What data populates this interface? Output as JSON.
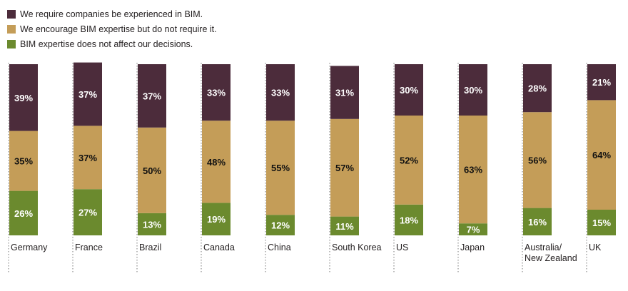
{
  "chart_data": {
    "type": "bar",
    "stacked": true,
    "normalized_percent": true,
    "categories": [
      "Germany",
      "France",
      "Brazil",
      "Canada",
      "China",
      "South Korea",
      "US",
      "Japan",
      [
        "Australia/",
        "New Zealand"
      ],
      "UK"
    ],
    "series": [
      {
        "name": "BIM expertise does not affect our decisions.",
        "color": "#6b8a2e",
        "values": [
          26,
          27,
          13,
          19,
          12,
          11,
          18,
          7,
          16,
          15
        ],
        "labels": [
          "26%",
          "27%",
          "13%",
          "19%",
          "12%",
          "11%",
          "18%",
          "7%",
          "16%",
          "15%"
        ]
      },
      {
        "name": "We encourage BIM expertise but do not require it.",
        "color": "#c49d58",
        "values": [
          35,
          37,
          50,
          48,
          55,
          57,
          52,
          63,
          56,
          64
        ],
        "labels": [
          "35%",
          "37%",
          "50%",
          "48%",
          "55%",
          "57%",
          "52%",
          "63%",
          "56%",
          "64%"
        ]
      },
      {
        "name": "We require companies be experienced in BIM.",
        "color": "#4c2c3b",
        "values": [
          39,
          37,
          37,
          33,
          33,
          31,
          30,
          30,
          28,
          21
        ],
        "labels": [
          "39%",
          "37%",
          "37%",
          "33%",
          "33%",
          "31%",
          "30%",
          "30%",
          "28%",
          "21%"
        ]
      }
    ],
    "legend_order": [
      2,
      1,
      0
    ],
    "legend_position": "top-left",
    "title": "",
    "xlabel": "",
    "ylabel": "",
    "grid": false
  }
}
